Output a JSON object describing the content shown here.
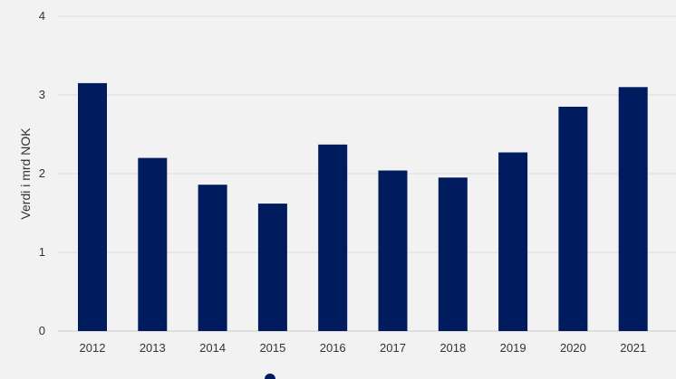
{
  "chart_data": {
    "type": "bar",
    "categories": [
      "2012",
      "2013",
      "2014",
      "2015",
      "2016",
      "2017",
      "2018",
      "2019",
      "2020",
      "2021"
    ],
    "series": [
      {
        "name": "",
        "values": [
          3.15,
          2.2,
          1.86,
          1.62,
          2.37,
          2.04,
          1.95,
          2.27,
          2.85,
          3.1
        ],
        "color": "#001c5e"
      }
    ],
    "title": "",
    "xlabel": "",
    "ylabel": "Verdi i mrd NOK",
    "ylim": [
      0,
      4
    ],
    "yticks": [
      "0",
      "1",
      "2",
      "3",
      "4"
    ],
    "grid": true,
    "legend_position": "bottom",
    "background": "#f2f2f2",
    "gridline_color": "#dcdcdc"
  }
}
